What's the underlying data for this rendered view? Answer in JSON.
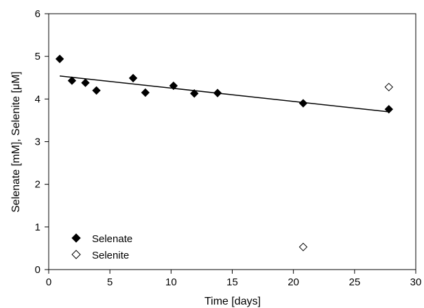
{
  "chart_data": {
    "type": "scatter",
    "title": "",
    "xlabel": "Time [days]",
    "ylabel": "Selenate [mM], Selenite [μM]",
    "xlim": [
      0,
      30
    ],
    "ylim": [
      0,
      6
    ],
    "xticks": [
      0,
      5,
      10,
      15,
      20,
      25,
      30
    ],
    "yticks": [
      0,
      1,
      2,
      3,
      4,
      5,
      6
    ],
    "xtick_labels": [
      "0",
      "5",
      "10",
      "15",
      "20",
      "25",
      "30"
    ],
    "ytick_labels": [
      "0",
      "1",
      "2",
      "3",
      "4",
      "5",
      "6"
    ],
    "grid": false,
    "legend_position": "bottom-left",
    "series": [
      {
        "name": "Selenate",
        "marker": "filled-diamond",
        "color": "#000000",
        "x": [
          0.9,
          1.9,
          3.0,
          3.9,
          6.9,
          7.9,
          10.2,
          11.9,
          13.8,
          20.8,
          27.8
        ],
        "y": [
          4.94,
          4.43,
          4.38,
          4.2,
          4.49,
          4.15,
          4.31,
          4.13,
          4.14,
          3.9,
          3.76
        ]
      },
      {
        "name": "Selenite",
        "marker": "open-diamond",
        "color": "#000000",
        "x": [
          20.8,
          27.8
        ],
        "y": [
          0.53,
          4.28
        ]
      }
    ],
    "trendline": {
      "series": "Selenate",
      "x": [
        0.9,
        27.8
      ],
      "y": [
        4.54,
        3.7
      ]
    }
  }
}
